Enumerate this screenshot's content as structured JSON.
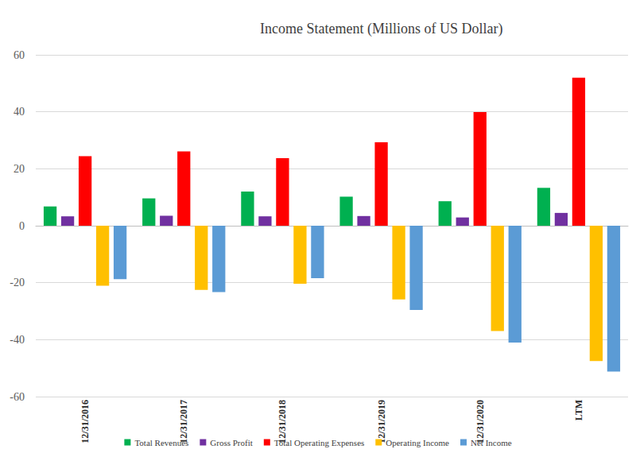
{
  "chart_data": {
    "type": "bar",
    "title": "Income Statement (Millions of US Dollar)",
    "categories": [
      "12/31/2016",
      "12/31/2017",
      "12/31/2018",
      "12/31/2019",
      "12/31/2020",
      "LTM"
    ],
    "series": [
      {
        "name": "Total Revenues",
        "color": "#00b050",
        "values": [
          6.8,
          9.6,
          12.0,
          10.2,
          8.6,
          13.3
        ]
      },
      {
        "name": "Gross Profit",
        "color": "#7030a0",
        "values": [
          3.3,
          3.5,
          3.3,
          3.4,
          2.9,
          4.5
        ]
      },
      {
        "name": "Total Operating Expenses",
        "color": "#ff0000",
        "values": [
          24.4,
          26.1,
          23.7,
          29.3,
          39.9,
          52.0
        ]
      },
      {
        "name": "Operating Income",
        "color": "#ffc000",
        "values": [
          -21.1,
          -22.5,
          -20.4,
          -25.9,
          -37.0,
          -47.5
        ]
      },
      {
        "name": "Net Income",
        "color": "#5b9bd5",
        "values": [
          -18.8,
          -23.3,
          -18.4,
          -29.6,
          -41.0,
          -51.2
        ]
      }
    ],
    "ylim": [
      -60,
      60
    ],
    "yticks": [
      -60,
      -40,
      -20,
      0,
      20,
      40,
      60
    ],
    "grid": true,
    "legend": "bottom"
  }
}
